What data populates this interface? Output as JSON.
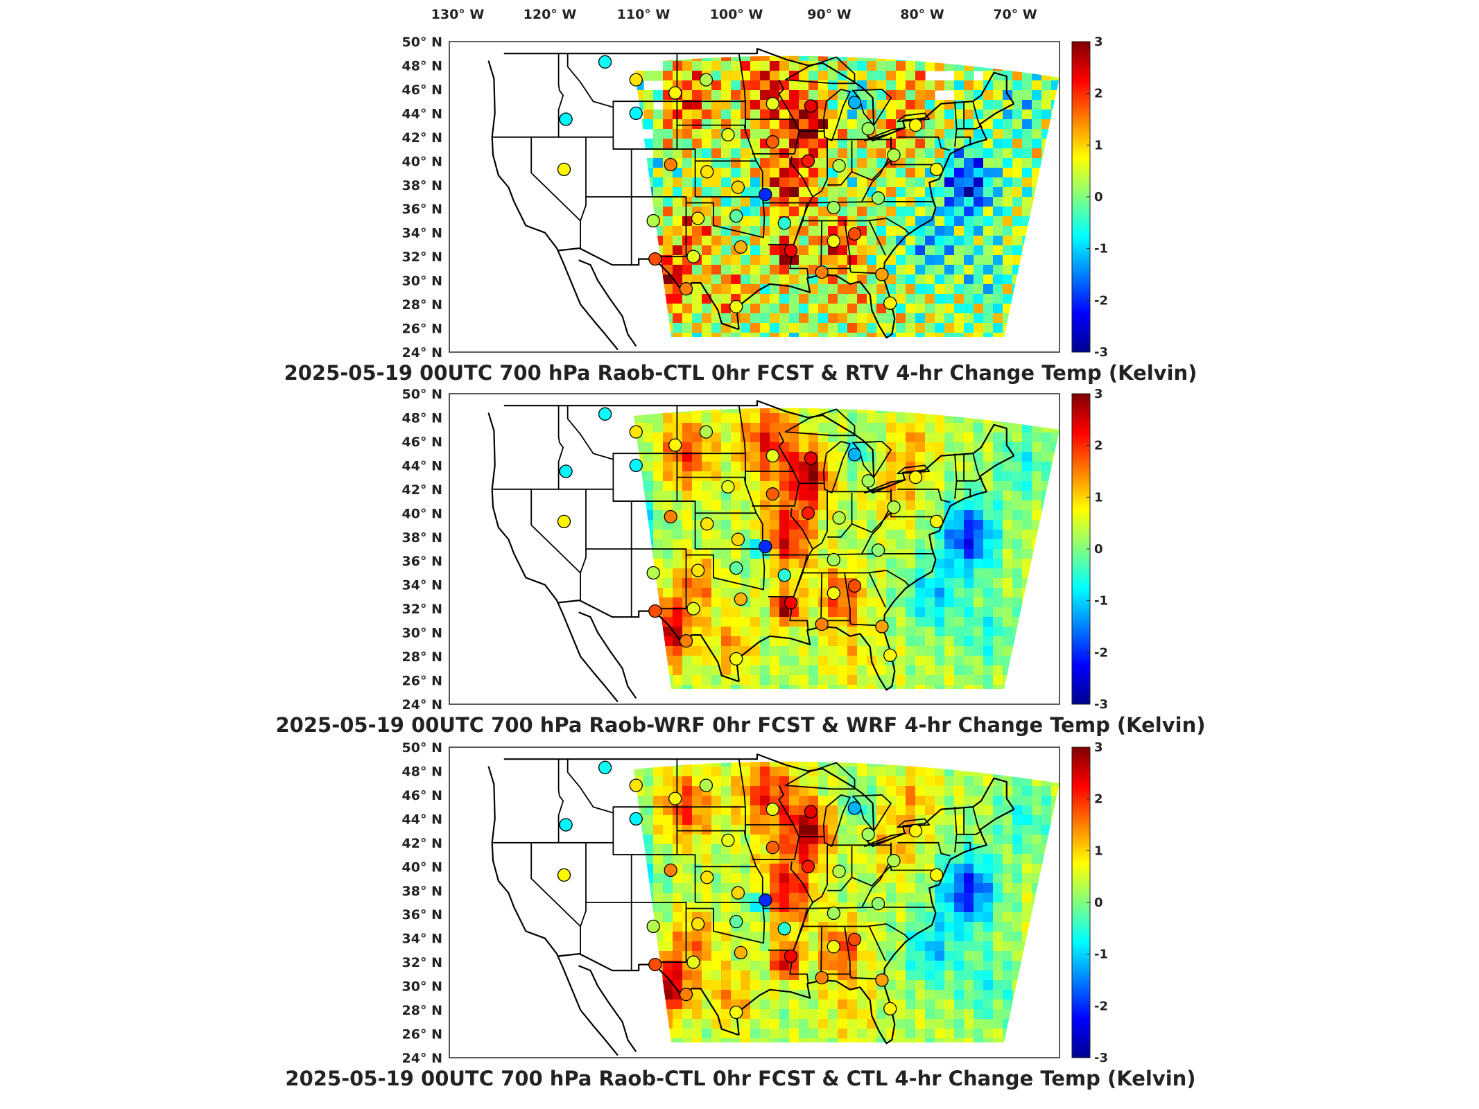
{
  "figure": {
    "colorbar": {
      "ticks": [
        "3",
        "2",
        "1",
        "0",
        "-1",
        "-2",
        "-3"
      ],
      "colormap": [
        "#00008f",
        "#0000ff",
        "#0080ff",
        "#00ffff",
        "#80ff80",
        "#ffff00",
        "#ff8000",
        "#ff0000",
        "#800000"
      ]
    },
    "lon_ticks": [
      "130° W",
      "120° W",
      "110° W",
      "100° W",
      "90° W",
      "80° W",
      "70° W"
    ],
    "lat_ticks": [
      "50° N",
      "48° N",
      "46° N",
      "44° N",
      "42° N",
      "40° N",
      "38° N",
      "36° N",
      "34° N",
      "32° N",
      "30° N",
      "28° N",
      "26° N",
      "24° N"
    ],
    "panels": [
      {
        "title": "2025-05-19 00UTC 700 hPa Raob-CTL 0hr FCST & RTV 4-hr Change Temp (Kelvin)",
        "coverage": "partial",
        "stations": [
          {
            "lon": -111.9,
            "lat": 48.3,
            "v": -0.7
          },
          {
            "lon": -108.5,
            "lat": 46.8,
            "v": 0.9
          },
          {
            "lon": -104.2,
            "lat": 45.7,
            "v": 0.8
          },
          {
            "lon": -100.8,
            "lat": 46.8,
            "v": 0.3
          },
          {
            "lon": -93.5,
            "lat": 44.8,
            "v": 0.6
          },
          {
            "lon": -89.3,
            "lat": 44.6,
            "v": 2.4
          },
          {
            "lon": -84.5,
            "lat": 44.9,
            "v": -1.2
          },
          {
            "lon": -108.5,
            "lat": 44.0,
            "v": -0.8
          },
          {
            "lon": -116.2,
            "lat": 43.5,
            "v": -0.8
          },
          {
            "lon": -98.4,
            "lat": 42.2,
            "v": 0.6
          },
          {
            "lon": -93.5,
            "lat": 41.6,
            "v": 1.7
          },
          {
            "lon": -83.0,
            "lat": 42.7,
            "v": 0.2
          },
          {
            "lon": -77.8,
            "lat": 43.0,
            "v": 0.8
          },
          {
            "lon": -89.6,
            "lat": 40.0,
            "v": 2.1
          },
          {
            "lon": -86.2,
            "lat": 39.6,
            "v": 0.3
          },
          {
            "lon": -80.2,
            "lat": 40.5,
            "v": 0.3
          },
          {
            "lon": -75.5,
            "lat": 39.3,
            "v": 0.8
          },
          {
            "lon": -116.4,
            "lat": 39.3,
            "v": 0.8
          },
          {
            "lon": -104.7,
            "lat": 39.7,
            "v": 1.5
          },
          {
            "lon": -100.7,
            "lat": 39.1,
            "v": 0.9
          },
          {
            "lon": -97.3,
            "lat": 37.8,
            "v": 1.0
          },
          {
            "lon": -94.3,
            "lat": 37.2,
            "v": -2.0
          },
          {
            "lon": -86.8,
            "lat": 36.1,
            "v": 0.2
          },
          {
            "lon": -81.9,
            "lat": 36.9,
            "v": 0.1
          },
          {
            "lon": -106.6,
            "lat": 35.0,
            "v": 0.3
          },
          {
            "lon": -101.7,
            "lat": 35.2,
            "v": 0.9
          },
          {
            "lon": -97.5,
            "lat": 35.4,
            "v": -0.2
          },
          {
            "lon": -92.2,
            "lat": 34.8,
            "v": -0.5
          },
          {
            "lon": -84.5,
            "lat": 33.9,
            "v": 1.8
          },
          {
            "lon": -86.8,
            "lat": 33.3,
            "v": 0.7
          },
          {
            "lon": -106.4,
            "lat": 31.8,
            "v": 1.8
          },
          {
            "lon": -102.2,
            "lat": 32.0,
            "v": 0.6
          },
          {
            "lon": -97.0,
            "lat": 32.8,
            "v": 1.2
          },
          {
            "lon": -91.5,
            "lat": 32.5,
            "v": 2.3
          },
          {
            "lon": -88.1,
            "lat": 30.7,
            "v": 1.5
          },
          {
            "lon": -81.5,
            "lat": 30.5,
            "v": 1.3
          },
          {
            "lon": -103.0,
            "lat": 29.3,
            "v": 1.5
          },
          {
            "lon": -97.5,
            "lat": 27.8,
            "v": 0.7
          },
          {
            "lon": -80.6,
            "lat": 28.1,
            "v": 0.8
          }
        ]
      },
      {
        "title": "2025-05-19 00UTC 700 hPa Raob-WRF 0hr FCST & WRF 4-hr Change Temp (Kelvin)",
        "coverage": "full",
        "stations": [
          {
            "lon": -111.9,
            "lat": 48.3,
            "v": -0.7
          },
          {
            "lon": -108.5,
            "lat": 46.8,
            "v": 0.9
          },
          {
            "lon": -104.2,
            "lat": 45.7,
            "v": 0.8
          },
          {
            "lon": -100.8,
            "lat": 46.8,
            "v": 0.3
          },
          {
            "lon": -93.5,
            "lat": 44.8,
            "v": 0.6
          },
          {
            "lon": -89.3,
            "lat": 44.6,
            "v": 2.4
          },
          {
            "lon": -84.5,
            "lat": 44.9,
            "v": -1.2
          },
          {
            "lon": -108.5,
            "lat": 44.0,
            "v": -0.8
          },
          {
            "lon": -116.2,
            "lat": 43.5,
            "v": -0.8
          },
          {
            "lon": -98.4,
            "lat": 42.2,
            "v": 0.6
          },
          {
            "lon": -93.5,
            "lat": 41.6,
            "v": 1.7
          },
          {
            "lon": -83.0,
            "lat": 42.7,
            "v": 0.2
          },
          {
            "lon": -77.8,
            "lat": 43.0,
            "v": 0.8
          },
          {
            "lon": -89.6,
            "lat": 40.0,
            "v": 2.1
          },
          {
            "lon": -86.2,
            "lat": 39.6,
            "v": 0.3
          },
          {
            "lon": -80.2,
            "lat": 40.5,
            "v": 0.3
          },
          {
            "lon": -75.5,
            "lat": 39.3,
            "v": 0.8
          },
          {
            "lon": -116.4,
            "lat": 39.3,
            "v": 0.8
          },
          {
            "lon": -104.7,
            "lat": 39.7,
            "v": 1.5
          },
          {
            "lon": -100.7,
            "lat": 39.1,
            "v": 0.9
          },
          {
            "lon": -97.3,
            "lat": 37.8,
            "v": 1.0
          },
          {
            "lon": -94.3,
            "lat": 37.2,
            "v": -2.0
          },
          {
            "lon": -86.8,
            "lat": 36.1,
            "v": 0.2
          },
          {
            "lon": -81.9,
            "lat": 36.9,
            "v": 0.1
          },
          {
            "lon": -106.6,
            "lat": 35.0,
            "v": 0.3
          },
          {
            "lon": -101.7,
            "lat": 35.2,
            "v": 0.9
          },
          {
            "lon": -97.5,
            "lat": 35.4,
            "v": -0.2
          },
          {
            "lon": -92.2,
            "lat": 34.8,
            "v": -0.5
          },
          {
            "lon": -84.5,
            "lat": 33.9,
            "v": 1.8
          },
          {
            "lon": -86.8,
            "lat": 33.3,
            "v": 0.7
          },
          {
            "lon": -106.4,
            "lat": 31.8,
            "v": 1.8
          },
          {
            "lon": -102.2,
            "lat": 32.0,
            "v": 0.6
          },
          {
            "lon": -97.0,
            "lat": 32.8,
            "v": 1.2
          },
          {
            "lon": -91.5,
            "lat": 32.5,
            "v": 2.3
          },
          {
            "lon": -88.1,
            "lat": 30.7,
            "v": 1.5
          },
          {
            "lon": -81.5,
            "lat": 30.5,
            "v": 1.3
          },
          {
            "lon": -103.0,
            "lat": 29.3,
            "v": 1.5
          },
          {
            "lon": -97.5,
            "lat": 27.8,
            "v": 0.7
          },
          {
            "lon": -80.6,
            "lat": 28.1,
            "v": 0.8
          }
        ]
      },
      {
        "title": "2025-05-19 00UTC 700 hPa Raob-CTL 0hr FCST & CTL 4-hr Change Temp (Kelvin)",
        "coverage": "full",
        "stations": [
          {
            "lon": -111.9,
            "lat": 48.3,
            "v": -0.7
          },
          {
            "lon": -108.5,
            "lat": 46.8,
            "v": 0.9
          },
          {
            "lon": -104.2,
            "lat": 45.7,
            "v": 0.8
          },
          {
            "lon": -100.8,
            "lat": 46.8,
            "v": 0.3
          },
          {
            "lon": -93.5,
            "lat": 44.8,
            "v": 0.6
          },
          {
            "lon": -89.3,
            "lat": 44.6,
            "v": 2.4
          },
          {
            "lon": -84.5,
            "lat": 44.9,
            "v": -1.2
          },
          {
            "lon": -108.5,
            "lat": 44.0,
            "v": -0.8
          },
          {
            "lon": -116.2,
            "lat": 43.5,
            "v": -0.8
          },
          {
            "lon": -98.4,
            "lat": 42.2,
            "v": 0.6
          },
          {
            "lon": -93.5,
            "lat": 41.6,
            "v": 1.7
          },
          {
            "lon": -83.0,
            "lat": 42.7,
            "v": 0.2
          },
          {
            "lon": -77.8,
            "lat": 43.0,
            "v": 0.8
          },
          {
            "lon": -89.6,
            "lat": 40.0,
            "v": 2.1
          },
          {
            "lon": -86.2,
            "lat": 39.6,
            "v": 0.3
          },
          {
            "lon": -80.2,
            "lat": 40.5,
            "v": 0.3
          },
          {
            "lon": -75.5,
            "lat": 39.3,
            "v": 0.8
          },
          {
            "lon": -116.4,
            "lat": 39.3,
            "v": 0.8
          },
          {
            "lon": -104.7,
            "lat": 39.7,
            "v": 1.5
          },
          {
            "lon": -100.7,
            "lat": 39.1,
            "v": 0.9
          },
          {
            "lon": -97.3,
            "lat": 37.8,
            "v": 1.0
          },
          {
            "lon": -94.3,
            "lat": 37.2,
            "v": -2.0
          },
          {
            "lon": -86.8,
            "lat": 36.1,
            "v": 0.2
          },
          {
            "lon": -81.9,
            "lat": 36.9,
            "v": 0.1
          },
          {
            "lon": -106.6,
            "lat": 35.0,
            "v": 0.3
          },
          {
            "lon": -101.7,
            "lat": 35.2,
            "v": 0.9
          },
          {
            "lon": -97.5,
            "lat": 35.4,
            "v": -0.2
          },
          {
            "lon": -92.2,
            "lat": 34.8,
            "v": -0.5
          },
          {
            "lon": -84.5,
            "lat": 33.9,
            "v": 1.8
          },
          {
            "lon": -86.8,
            "lat": 33.3,
            "v": 0.7
          },
          {
            "lon": -106.4,
            "lat": 31.8,
            "v": 1.8
          },
          {
            "lon": -102.2,
            "lat": 32.0,
            "v": 0.6
          },
          {
            "lon": -97.0,
            "lat": 32.8,
            "v": 1.2
          },
          {
            "lon": -91.5,
            "lat": 32.5,
            "v": 2.3
          },
          {
            "lon": -88.1,
            "lat": 30.7,
            "v": 1.5
          },
          {
            "lon": -81.5,
            "lat": 30.5,
            "v": 1.3
          },
          {
            "lon": -103.0,
            "lat": 29.3,
            "v": 1.5
          },
          {
            "lon": -97.5,
            "lat": 27.8,
            "v": 0.7
          },
          {
            "lon": -80.6,
            "lat": 28.1,
            "v": 0.8
          }
        ]
      }
    ]
  }
}
